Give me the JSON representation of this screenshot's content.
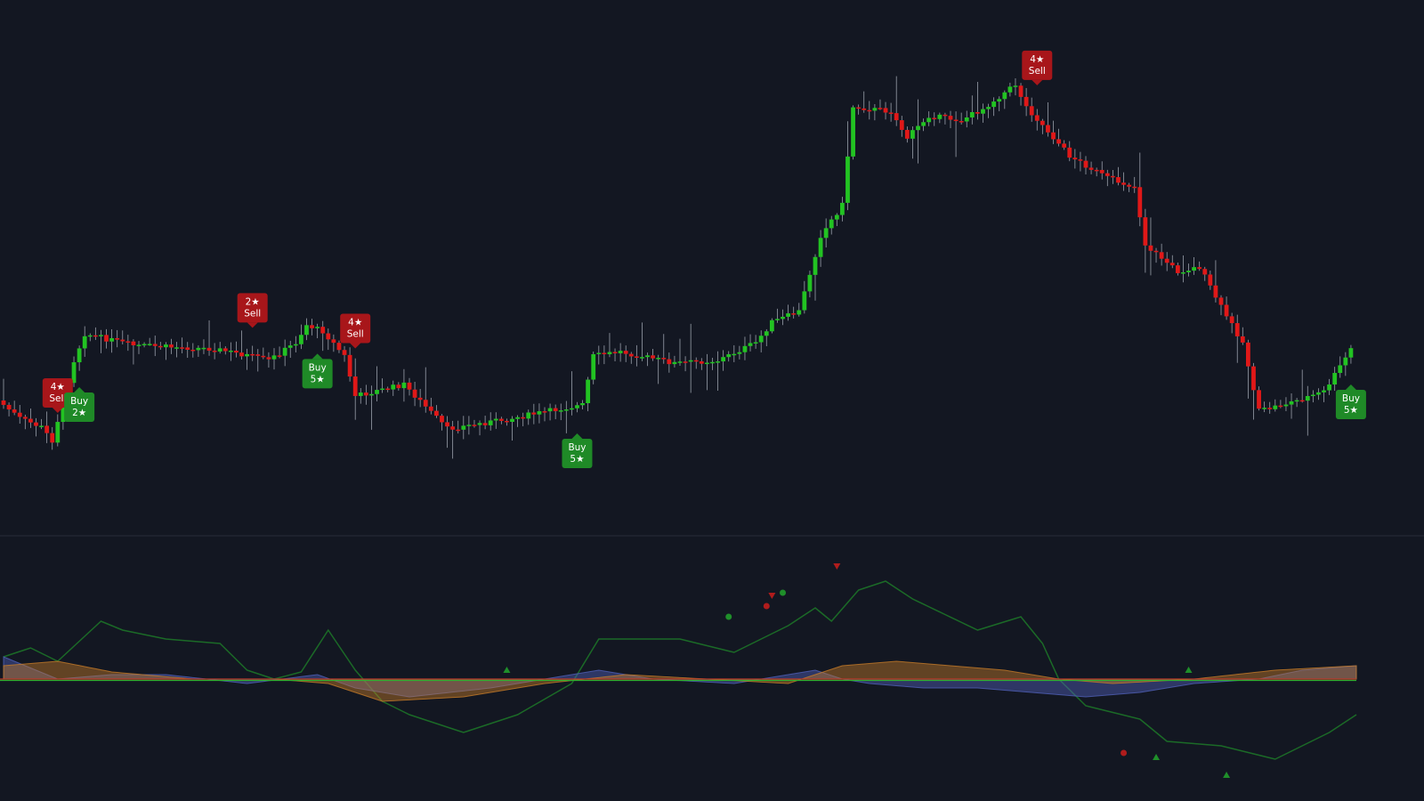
{
  "chart_data": [
    {
      "type": "candlestick",
      "title": "",
      "xlabel": "",
      "ylabel": "",
      "grid": false,
      "x_count": 250,
      "ylim": [
        0,
        590
      ],
      "colors": {
        "up": "#22c322",
        "down": "#e01818",
        "wick": "#9aa0ab",
        "background": "#131722"
      },
      "price_path": [
        [
          0,
          450
        ],
        [
          4,
          470
        ],
        [
          8,
          480
        ],
        [
          10,
          495
        ],
        [
          12,
          450
        ],
        [
          14,
          405
        ],
        [
          16,
          375
        ],
        [
          25,
          388
        ],
        [
          40,
          392
        ],
        [
          45,
          398
        ],
        [
          50,
          405
        ],
        [
          55,
          385
        ],
        [
          57,
          365
        ],
        [
          60,
          372
        ],
        [
          64,
          400
        ],
        [
          66,
          445
        ],
        [
          75,
          432
        ],
        [
          83,
          482
        ],
        [
          95,
          470
        ],
        [
          105,
          458
        ],
        [
          108,
          455
        ],
        [
          110,
          400
        ],
        [
          115,
          395
        ],
        [
          125,
          408
        ],
        [
          133,
          405
        ],
        [
          140,
          385
        ],
        [
          143,
          362
        ],
        [
          148,
          350
        ],
        [
          152,
          265
        ],
        [
          156,
          230
        ],
        [
          158,
          120
        ],
        [
          165,
          125
        ],
        [
          168,
          155
        ],
        [
          172,
          130
        ],
        [
          178,
          135
        ],
        [
          182,
          122
        ],
        [
          188,
          95
        ],
        [
          190,
          120
        ],
        [
          198,
          175
        ],
        [
          205,
          200
        ],
        [
          210,
          210
        ],
        [
          212,
          275
        ],
        [
          218,
          305
        ],
        [
          222,
          300
        ],
        [
          226,
          345
        ],
        [
          230,
          385
        ],
        [
          233,
          462
        ],
        [
          240,
          450
        ],
        [
          245,
          440
        ],
        [
          248,
          412
        ],
        [
          250,
          392
        ]
      ],
      "signals": [
        {
          "side": "sell",
          "index": 10,
          "stars": 4,
          "label": "Sell",
          "star_text": "4★"
        },
        {
          "side": "buy",
          "index": 14,
          "stars": 2,
          "label": "Buy",
          "star_text": "2★"
        },
        {
          "side": "sell",
          "index": 46,
          "stars": 2,
          "label": "Sell",
          "star_text": "2★"
        },
        {
          "side": "buy",
          "index": 58,
          "stars": 5,
          "label": "Buy",
          "star_text": "5★"
        },
        {
          "side": "sell",
          "index": 65,
          "stars": 4,
          "label": "Sell",
          "star_text": "4★"
        },
        {
          "side": "buy",
          "index": 106,
          "stars": 5,
          "label": "Buy",
          "star_text": "5★"
        },
        {
          "side": "sell",
          "index": 191,
          "stars": 4,
          "label": "Sell",
          "star_text": "4★"
        },
        {
          "side": "buy",
          "index": 249,
          "stars": 5,
          "label": "Buy",
          "star_text": "5★"
        }
      ]
    },
    {
      "type": "area",
      "title": "",
      "xlabel": "",
      "ylabel": "",
      "grid": false,
      "ylim": [
        -100,
        130
      ],
      "baseline": 0,
      "momentum": [
        [
          0,
          25
        ],
        [
          5,
          35
        ],
        [
          10,
          20
        ],
        [
          18,
          65
        ],
        [
          22,
          55
        ],
        [
          30,
          45
        ],
        [
          40,
          40
        ],
        [
          45,
          10
        ],
        [
          50,
          0
        ],
        [
          55,
          8
        ],
        [
          60,
          55
        ],
        [
          65,
          10
        ],
        [
          70,
          -25
        ],
        [
          75,
          -40
        ],
        [
          85,
          -60
        ],
        [
          95,
          -40
        ],
        [
          105,
          -5
        ],
        [
          110,
          45
        ],
        [
          125,
          45
        ],
        [
          135,
          30
        ],
        [
          145,
          60
        ],
        [
          150,
          80
        ],
        [
          153,
          65
        ],
        [
          158,
          100
        ],
        [
          163,
          110
        ],
        [
          168,
          90
        ],
        [
          180,
          55
        ],
        [
          188,
          70
        ],
        [
          192,
          40
        ],
        [
          195,
          0
        ],
        [
          200,
          -30
        ],
        [
          210,
          -45
        ],
        [
          215,
          -70
        ],
        [
          225,
          -75
        ],
        [
          235,
          -90
        ],
        [
          245,
          -60
        ],
        [
          250,
          -40
        ]
      ],
      "blue_wave": [
        [
          0,
          25
        ],
        [
          10,
          0
        ],
        [
          20,
          5
        ],
        [
          30,
          5
        ],
        [
          45,
          -5
        ],
        [
          58,
          5
        ],
        [
          65,
          -10
        ],
        [
          75,
          -20
        ],
        [
          90,
          -10
        ],
        [
          100,
          0
        ],
        [
          110,
          10
        ],
        [
          120,
          0
        ],
        [
          135,
          -5
        ],
        [
          145,
          5
        ],
        [
          150,
          10
        ],
        [
          155,
          0
        ],
        [
          160,
          -5
        ],
        [
          170,
          -10
        ],
        [
          180,
          -10
        ],
        [
          190,
          -15
        ],
        [
          200,
          -20
        ],
        [
          210,
          -15
        ],
        [
          220,
          -5
        ],
        [
          232,
          0
        ],
        [
          240,
          10
        ],
        [
          250,
          15
        ]
      ],
      "orange_wave": [
        [
          0,
          15
        ],
        [
          10,
          20
        ],
        [
          20,
          8
        ],
        [
          35,
          0
        ],
        [
          50,
          0
        ],
        [
          60,
          -5
        ],
        [
          70,
          -25
        ],
        [
          85,
          -20
        ],
        [
          100,
          -5
        ],
        [
          115,
          5
        ],
        [
          130,
          0
        ],
        [
          145,
          -5
        ],
        [
          155,
          15
        ],
        [
          165,
          20
        ],
        [
          175,
          15
        ],
        [
          185,
          10
        ],
        [
          195,
          0
        ],
        [
          205,
          -5
        ],
        [
          220,
          0
        ],
        [
          235,
          10
        ],
        [
          250,
          15
        ]
      ],
      "dots": [
        {
          "index": 134,
          "value": 70,
          "color": "#1f8f2a",
          "shape": "circle"
        },
        {
          "index": 141,
          "value": 82,
          "color": "#b01c1c",
          "shape": "circle"
        },
        {
          "index": 142,
          "value": 94,
          "color": "#b01c1c",
          "shape": "triangle-down"
        },
        {
          "index": 144,
          "value": 97,
          "color": "#1f8f2a",
          "shape": "circle"
        },
        {
          "index": 154,
          "value": 127,
          "color": "#b01c1c",
          "shape": "triangle-down"
        },
        {
          "index": 93,
          "value": 10,
          "color": "#1f8f2a",
          "shape": "triangle-up"
        },
        {
          "index": 219,
          "value": 10,
          "color": "#1f8f2a",
          "shape": "triangle-up"
        },
        {
          "index": 207,
          "value": -83,
          "color": "#b01c1c",
          "shape": "circle"
        },
        {
          "index": 213,
          "value": -88,
          "color": "#1f8f2a",
          "shape": "triangle-up"
        },
        {
          "index": 226,
          "value": -108,
          "color": "#1f8f2a",
          "shape": "triangle-up"
        }
      ],
      "colors": {
        "positive": "#1c9a1c",
        "negative": "#b51515",
        "blue": "#5060b8",
        "orange": "#c47a28",
        "zero_line": "#c0392b"
      }
    }
  ]
}
